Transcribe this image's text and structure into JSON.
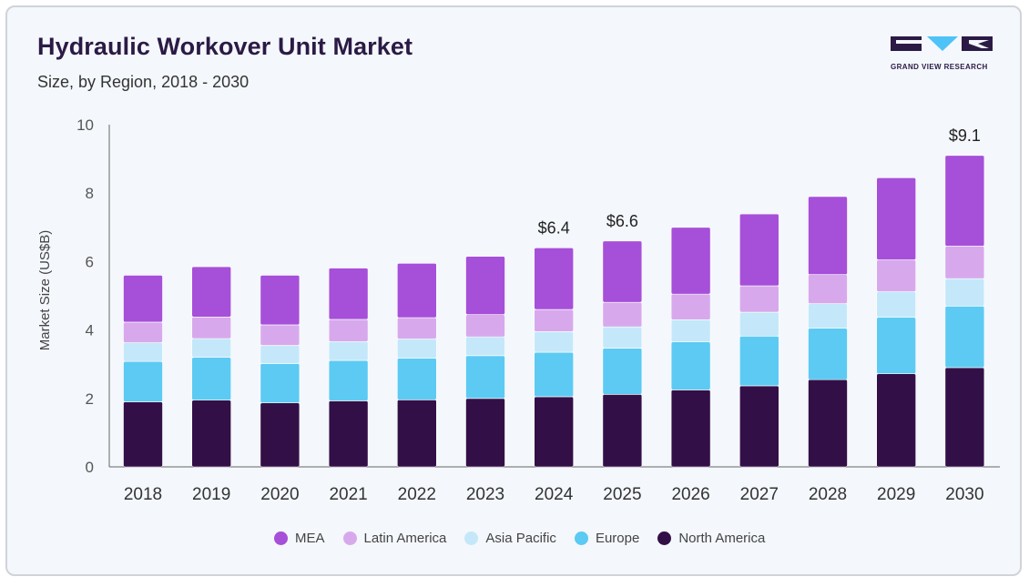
{
  "header": {
    "title": "Hydraulic Workover Unit Market",
    "subtitle": "Size, by Region, 2018 - 2030"
  },
  "logo": {
    "text": "GRAND VIEW RESEARCH",
    "colors": {
      "dark": "#2b1a45",
      "accent": "#4fc3f7"
    }
  },
  "chart_data": {
    "type": "bar",
    "stacked": true,
    "categories": [
      "2018",
      "2019",
      "2020",
      "2021",
      "2022",
      "2023",
      "2024",
      "2025",
      "2026",
      "2027",
      "2028",
      "2029",
      "2030"
    ],
    "series": [
      {
        "name": "North America",
        "color": "#330f47",
        "values": [
          1.9,
          1.95,
          1.87,
          1.93,
          1.96,
          2.0,
          2.05,
          2.12,
          2.25,
          2.37,
          2.55,
          2.72,
          2.9
        ]
      },
      {
        "name": "Europe",
        "color": "#5ccaf3",
        "values": [
          1.18,
          1.25,
          1.15,
          1.18,
          1.22,
          1.25,
          1.3,
          1.35,
          1.4,
          1.45,
          1.5,
          1.65,
          1.8
        ]
      },
      {
        "name": "Asia Pacific",
        "color": "#c4e8fa",
        "values": [
          0.55,
          0.55,
          0.53,
          0.55,
          0.56,
          0.55,
          0.6,
          0.62,
          0.65,
          0.7,
          0.72,
          0.75,
          0.8
        ]
      },
      {
        "name": "Latin America",
        "color": "#d7a9ec",
        "values": [
          0.6,
          0.63,
          0.6,
          0.65,
          0.62,
          0.65,
          0.65,
          0.72,
          0.75,
          0.77,
          0.85,
          0.93,
          0.95
        ]
      },
      {
        "name": "MEA",
        "color": "#a64fd9",
        "values": [
          1.37,
          1.47,
          1.45,
          1.5,
          1.59,
          1.7,
          1.8,
          1.79,
          1.95,
          2.1,
          2.28,
          2.4,
          2.65
        ]
      }
    ],
    "legend_order": [
      "MEA",
      "Latin America",
      "Asia Pacific",
      "Europe",
      "North America"
    ],
    "data_labels": [
      {
        "category": "2024",
        "text": "$6.4"
      },
      {
        "category": "2025",
        "text": "$6.6"
      },
      {
        "category": "2030",
        "text": "$9.1"
      }
    ],
    "title": "Hydraulic Workover Unit Market",
    "subtitle": "Size, by Region, 2018 - 2030",
    "xlabel": "",
    "ylabel": "Market Size (US$B)",
    "ylim": [
      0,
      10
    ],
    "yticks": [
      0,
      2,
      4,
      6,
      8,
      10
    ],
    "grid": false,
    "legend_position": "bottom"
  }
}
